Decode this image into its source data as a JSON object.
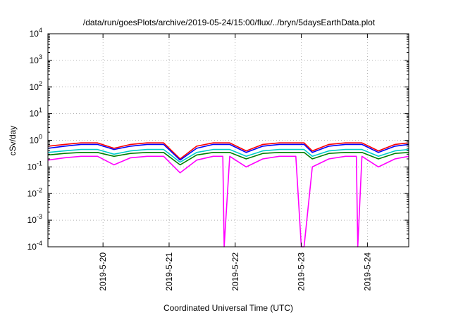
{
  "chart_data": {
    "type": "line",
    "title": "/data/run/goesPlots/archive/2019-05-24/15:00/flux/../bryn/5daysEarthData.plot",
    "xlabel": "Coordinated Universal Time (UTC)",
    "ylabel": "cSv/day",
    "yscale": "log",
    "ylim": [
      0.0001,
      10000
    ],
    "xlim": [
      "2019-05-19 04:00",
      "2019-05-24 15:00"
    ],
    "grid": true,
    "y_ticks": [
      {
        "base": "10",
        "exp": "4"
      },
      {
        "base": "10",
        "exp": "3"
      },
      {
        "base": "10",
        "exp": "2"
      },
      {
        "base": "10",
        "exp": "1"
      },
      {
        "base": "10",
        "exp": "0"
      },
      {
        "base": "10",
        "exp": "-1"
      },
      {
        "base": "10",
        "exp": "-2"
      },
      {
        "base": "10",
        "exp": "-3"
      },
      {
        "base": "10",
        "exp": "-4"
      }
    ],
    "x_ticks": [
      "2019-5-20",
      "2019-5-21",
      "2019-5-22",
      "2019-5-23",
      "2019-5-24"
    ],
    "x": [
      "2019-05-19 04:00",
      "2019-05-19 10:00",
      "2019-05-19 16:00",
      "2019-05-19 22:00",
      "2019-05-20 04:00",
      "2019-05-20 10:00",
      "2019-05-20 16:00",
      "2019-05-20 22:00",
      "2019-05-21 04:00",
      "2019-05-21 10:00",
      "2019-05-21 16:00",
      "2019-05-21 19:30",
      "2019-05-21 20:00",
      "2019-05-21 22:00",
      "2019-05-22 04:00",
      "2019-05-22 10:00",
      "2019-05-22 16:00",
      "2019-05-22 22:00",
      "2019-05-23 00:00",
      "2019-05-23 01:00",
      "2019-05-23 04:00",
      "2019-05-23 10:00",
      "2019-05-23 16:00",
      "2019-05-23 20:00",
      "2019-05-23 20:30",
      "2019-05-23 22:00",
      "2019-05-24 04:00",
      "2019-05-24 10:00",
      "2019-05-24 15:00"
    ],
    "series": [
      {
        "color": "#ff0000",
        "values": [
          0.6,
          0.7,
          0.8,
          0.8,
          0.5,
          0.7,
          0.8,
          0.8,
          0.2,
          0.6,
          0.8,
          0.8,
          0.8,
          0.8,
          0.4,
          0.7,
          0.8,
          0.8,
          0.8,
          0.8,
          0.4,
          0.7,
          0.8,
          0.8,
          0.8,
          0.8,
          0.4,
          0.7,
          0.8
        ]
      },
      {
        "color": "#0000ff",
        "values": [
          0.5,
          0.6,
          0.7,
          0.7,
          0.45,
          0.6,
          0.7,
          0.7,
          0.18,
          0.5,
          0.7,
          0.7,
          0.7,
          0.7,
          0.35,
          0.6,
          0.7,
          0.7,
          0.7,
          0.7,
          0.35,
          0.6,
          0.7,
          0.7,
          0.7,
          0.7,
          0.35,
          0.6,
          0.7
        ]
      },
      {
        "color": "#00cccc",
        "values": [
          0.35,
          0.4,
          0.45,
          0.45,
          0.3,
          0.4,
          0.45,
          0.45,
          0.15,
          0.35,
          0.45,
          0.45,
          0.45,
          0.45,
          0.25,
          0.4,
          0.45,
          0.45,
          0.45,
          0.45,
          0.25,
          0.4,
          0.45,
          0.45,
          0.45,
          0.45,
          0.25,
          0.4,
          0.45
        ]
      },
      {
        "color": "#008000",
        "values": [
          0.28,
          0.32,
          0.35,
          0.35,
          0.25,
          0.32,
          0.35,
          0.35,
          0.12,
          0.28,
          0.35,
          0.35,
          0.35,
          0.35,
          0.2,
          0.32,
          0.35,
          0.35,
          0.35,
          0.35,
          0.2,
          0.32,
          0.35,
          0.35,
          0.35,
          0.35,
          0.2,
          0.32,
          0.35
        ]
      },
      {
        "color": "#ff00ff",
        "values": [
          0.18,
          0.22,
          0.25,
          0.25,
          0.12,
          0.22,
          0.25,
          0.25,
          0.06,
          0.18,
          0.25,
          0.25,
          0.0001,
          0.25,
          0.1,
          0.2,
          0.25,
          0.25,
          0.0001,
          0.0001,
          0.1,
          0.2,
          0.25,
          0.25,
          0.0001,
          0.25,
          0.1,
          0.2,
          0.25
        ]
      }
    ]
  }
}
